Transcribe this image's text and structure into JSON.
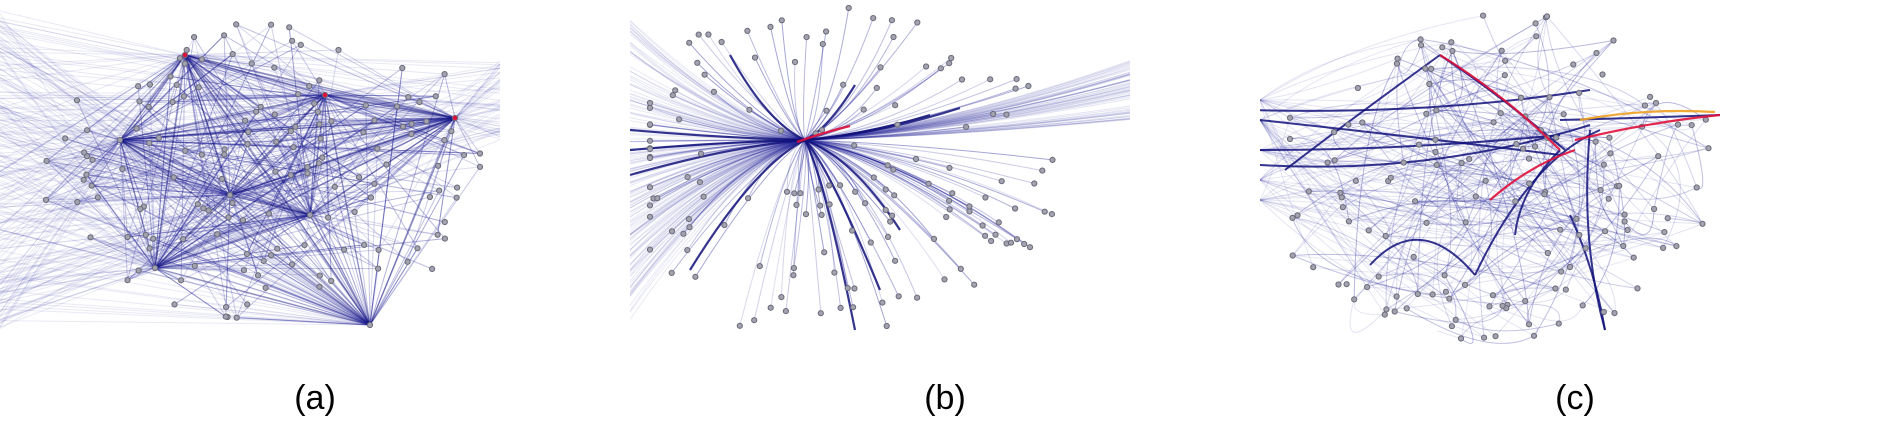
{
  "figure": {
    "colors": {
      "edge": "#2a2a9a",
      "edge_strong": "#10107a",
      "highlight": "#e0103a",
      "highlight_alt": "#f0a020",
      "node_fill": "#a3a3b0",
      "node_stroke": "#6a6a7a"
    },
    "panels": [
      {
        "id": "a",
        "caption": "(a)",
        "style": "straight-line edges (no bundling)"
      },
      {
        "id": "b",
        "caption": "(b)",
        "style": "edges bundled toward a single central hub"
      },
      {
        "id": "c",
        "caption": "(c)",
        "style": "edges bundled along multiple curved routes"
      }
    ]
  }
}
